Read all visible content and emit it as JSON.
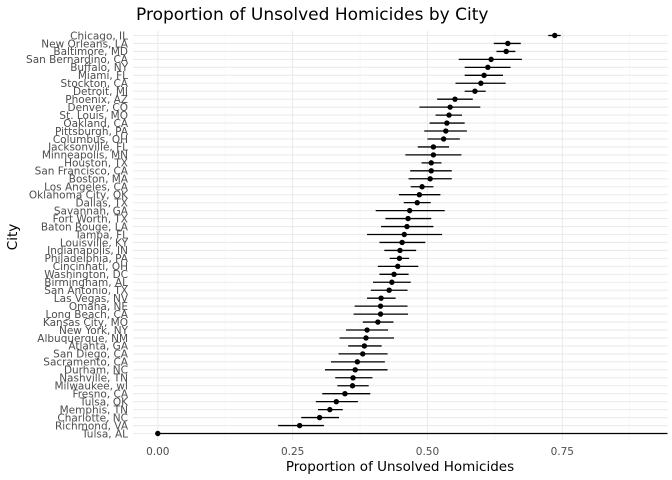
{
  "chart_data": {
    "type": "scatter",
    "title": "Proportion of Unsolved Homicides by City",
    "xlabel": "Proportion of Unsolved Homicides",
    "ylabel": "City",
    "xlim": [
      -0.046,
      0.946
    ],
    "x_ticks": [
      0.0,
      0.25,
      0.5,
      0.75
    ],
    "x_tick_labels": [
      "0.00",
      "0.25",
      "0.50",
      "0.75"
    ],
    "grid": true,
    "legend": "none",
    "error_bars": "confidence interval",
    "cities": [
      {
        "name": "Chicago, IL",
        "estimate": 0.736,
        "low": 0.724,
        "high": 0.747
      },
      {
        "name": "New Orleans, LA",
        "estimate": 0.649,
        "low": 0.623,
        "high": 0.673
      },
      {
        "name": "Baltimore, MD",
        "estimate": 0.646,
        "low": 0.628,
        "high": 0.663
      },
      {
        "name": "San Bernardino, CA",
        "estimate": 0.618,
        "low": 0.558,
        "high": 0.675
      },
      {
        "name": "Buffalo, NY",
        "estimate": 0.612,
        "low": 0.569,
        "high": 0.654
      },
      {
        "name": "Miami, FL",
        "estimate": 0.605,
        "low": 0.569,
        "high": 0.64
      },
      {
        "name": "Stockton, CA",
        "estimate": 0.599,
        "low": 0.552,
        "high": 0.645
      },
      {
        "name": "Detroit, MI",
        "estimate": 0.588,
        "low": 0.569,
        "high": 0.608
      },
      {
        "name": "Phoenix, AZ",
        "estimate": 0.551,
        "low": 0.518,
        "high": 0.584
      },
      {
        "name": "Denver, CO",
        "estimate": 0.542,
        "low": 0.485,
        "high": 0.598
      },
      {
        "name": "St. Louis, MO",
        "estimate": 0.54,
        "low": 0.515,
        "high": 0.564
      },
      {
        "name": "Oakland, CA",
        "estimate": 0.536,
        "low": 0.504,
        "high": 0.569
      },
      {
        "name": "Pittsburgh, PA",
        "estimate": 0.534,
        "low": 0.494,
        "high": 0.573
      },
      {
        "name": "Columbus, OH",
        "estimate": 0.53,
        "low": 0.5,
        "high": 0.56
      },
      {
        "name": "Jacksonville, FL",
        "estimate": 0.511,
        "low": 0.482,
        "high": 0.54
      },
      {
        "name": "Minneapolis, MN",
        "estimate": 0.511,
        "low": 0.459,
        "high": 0.563
      },
      {
        "name": "Houston, TX",
        "estimate": 0.507,
        "low": 0.489,
        "high": 0.526
      },
      {
        "name": "San Francisco, CA",
        "estimate": 0.507,
        "low": 0.468,
        "high": 0.545
      },
      {
        "name": "Boston, MA",
        "estimate": 0.505,
        "low": 0.465,
        "high": 0.545
      },
      {
        "name": "Los Angeles, CA",
        "estimate": 0.49,
        "low": 0.469,
        "high": 0.511
      },
      {
        "name": "Oklahoma City, OK",
        "estimate": 0.485,
        "low": 0.447,
        "high": 0.524
      },
      {
        "name": "Dallas, TX",
        "estimate": 0.481,
        "low": 0.456,
        "high": 0.506
      },
      {
        "name": "Savannah, GA",
        "estimate": 0.467,
        "low": 0.404,
        "high": 0.532
      },
      {
        "name": "Fort Worth, TX",
        "estimate": 0.464,
        "low": 0.422,
        "high": 0.507
      },
      {
        "name": "Baton Rouge, LA",
        "estimate": 0.462,
        "low": 0.414,
        "high": 0.511
      },
      {
        "name": "Tampa, FL",
        "estimate": 0.457,
        "low": 0.388,
        "high": 0.527
      },
      {
        "name": "Louisville, KY",
        "estimate": 0.453,
        "low": 0.411,
        "high": 0.496
      },
      {
        "name": "Indianapolis, IN",
        "estimate": 0.449,
        "low": 0.42,
        "high": 0.479
      },
      {
        "name": "Philadelphia, PA",
        "estimate": 0.448,
        "low": 0.43,
        "high": 0.466
      },
      {
        "name": "Cincinnati, OH",
        "estimate": 0.445,
        "low": 0.408,
        "high": 0.483
      },
      {
        "name": "Washington, DC",
        "estimate": 0.438,
        "low": 0.411,
        "high": 0.465
      },
      {
        "name": "Birmingham, AL",
        "estimate": 0.434,
        "low": 0.399,
        "high": 0.469
      },
      {
        "name": "San Antonio, TX",
        "estimate": 0.429,
        "low": 0.395,
        "high": 0.463
      },
      {
        "name": "Las Vegas, NV",
        "estimate": 0.414,
        "low": 0.388,
        "high": 0.441
      },
      {
        "name": "Omaha, NE",
        "estimate": 0.413,
        "low": 0.365,
        "high": 0.463
      },
      {
        "name": "Long Beach, CA",
        "estimate": 0.413,
        "low": 0.363,
        "high": 0.464
      },
      {
        "name": "Kansas City, MO",
        "estimate": 0.408,
        "low": 0.38,
        "high": 0.437
      },
      {
        "name": "New York, NY",
        "estimate": 0.388,
        "low": 0.349,
        "high": 0.427
      },
      {
        "name": "Albuquerque, NM",
        "estimate": 0.386,
        "low": 0.337,
        "high": 0.438
      },
      {
        "name": "Atlanta, GA",
        "estimate": 0.383,
        "low": 0.353,
        "high": 0.415
      },
      {
        "name": "San Diego, CA",
        "estimate": 0.38,
        "low": 0.335,
        "high": 0.426
      },
      {
        "name": "Sacramento, CA",
        "estimate": 0.37,
        "low": 0.321,
        "high": 0.421
      },
      {
        "name": "Durham, NC",
        "estimate": 0.366,
        "low": 0.31,
        "high": 0.426
      },
      {
        "name": "Nashville, TN",
        "estimate": 0.362,
        "low": 0.329,
        "high": 0.398
      },
      {
        "name": "Milwaukee, wI",
        "estimate": 0.361,
        "low": 0.333,
        "high": 0.391
      },
      {
        "name": "Fresno, CA",
        "estimate": 0.347,
        "low": 0.305,
        "high": 0.394
      },
      {
        "name": "Tulsa, OK",
        "estimate": 0.331,
        "low": 0.293,
        "high": 0.371
      },
      {
        "name": "Memphis, TN",
        "estimate": 0.319,
        "low": 0.297,
        "high": 0.343
      },
      {
        "name": "Charlotte, NC",
        "estimate": 0.3,
        "low": 0.266,
        "high": 0.336
      },
      {
        "name": "Richmond, VA",
        "estimate": 0.263,
        "low": 0.223,
        "high": 0.308
      },
      {
        "name": "Tulsa, AL",
        "estimate": 0.0,
        "low": 0.0,
        "high": 0.945
      }
    ]
  }
}
